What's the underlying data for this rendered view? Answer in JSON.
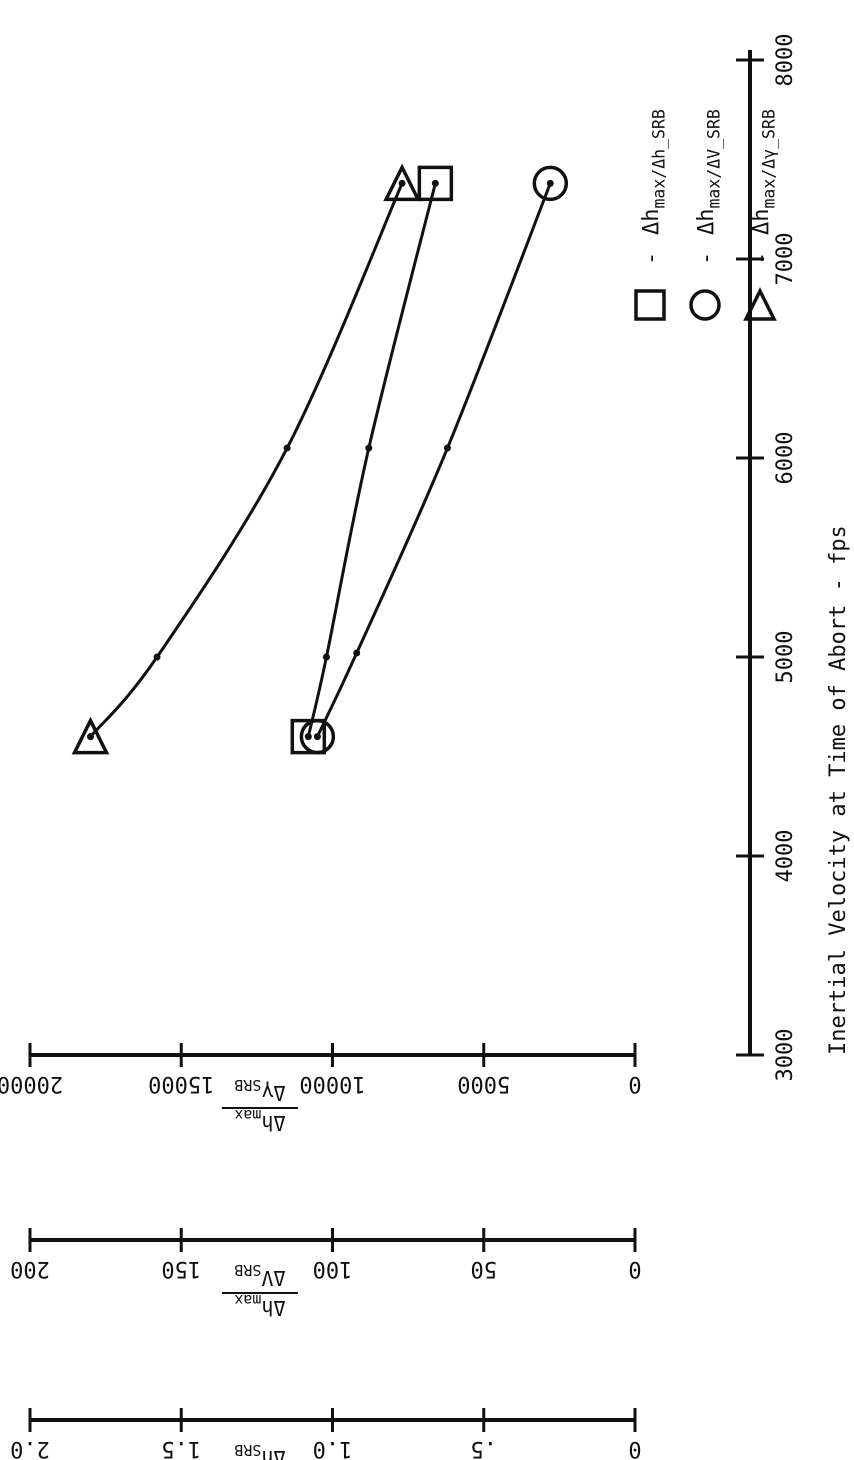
{
  "chart_data": {
    "type": "line",
    "orientation": "rotated-90-ccw",
    "xlabel": "Inertial Velocity at Time of Abort - fps",
    "x_ticks": [
      "3000",
      "4000",
      "5000",
      "6000",
      "7000",
      "8000"
    ],
    "xlim": [
      3000,
      8000
    ],
    "axes": [
      {
        "id": "ratio",
        "label_top": "Δh_max",
        "label_bottom": "Δh_SRB",
        "ticks": [
          "0",
          ".5",
          "1.0",
          "1.5",
          "2.0"
        ],
        "ylim": [
          0,
          2.0
        ]
      },
      {
        "id": "v",
        "label_top": "Δh_max",
        "label_bottom": "ΔV_SRB",
        "ticks": [
          "0",
          "50",
          "100",
          "150",
          "200"
        ],
        "ylim": [
          0,
          200
        ]
      },
      {
        "id": "y",
        "label_top": "Δh_max",
        "label_bottom": "Δγ_SRB",
        "ticks": [
          "0",
          "5000",
          "10000",
          "15000",
          "20000"
        ],
        "ylim": [
          0,
          20000
        ]
      }
    ],
    "series": [
      {
        "marker": "square",
        "name": "Δh_max/Δh_SRB",
        "axis": "ratio",
        "x": [
          4600,
          5000,
          6050,
          7380
        ],
        "y": [
          1.08,
          1.02,
          0.88,
          0.66
        ]
      },
      {
        "marker": "circle",
        "name": "Δh_max/ΔV_SRB",
        "axis": "v",
        "x": [
          4600,
          5020,
          6050,
          7380
        ],
        "y": [
          105,
          92,
          62,
          28
        ]
      },
      {
        "marker": "triangle",
        "name": "Δh_max/Δγ_SRB",
        "axis": "y",
        "x": [
          4600,
          5000,
          6050,
          7380
        ],
        "y": [
          18000,
          15800,
          11500,
          7700
        ]
      }
    ],
    "legend": {
      "placement": "top-right",
      "entries": [
        {
          "marker": "square",
          "text": "Δh_max/Δh_SRB"
        },
        {
          "marker": "circle",
          "text": "Δh_max/ΔV_SRB"
        },
        {
          "marker": "triangle",
          "text": "Δh_max/Δγ_SRB"
        }
      ]
    },
    "grid": false
  }
}
